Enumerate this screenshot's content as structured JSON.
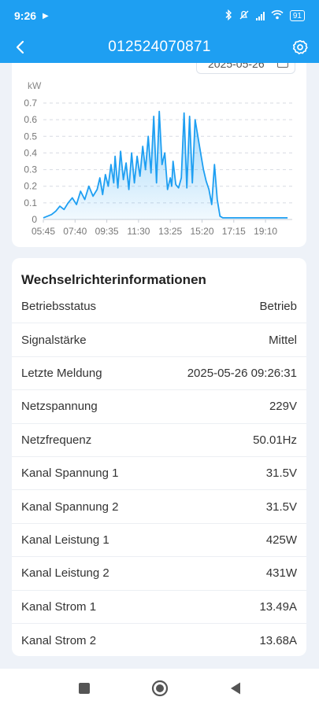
{
  "status_bar": {
    "time": "9:26",
    "battery": "91"
  },
  "header": {
    "title": "012524070871"
  },
  "date_picker": {
    "value": "2025-05-26"
  },
  "chart_data": {
    "type": "area",
    "ylabel": "kW",
    "ylim": [
      0,
      0.7
    ],
    "yticks": [
      "0",
      "0.1",
      "0.2",
      "0.3",
      "0.4",
      "0.5",
      "0.6",
      "0.7"
    ],
    "xticks": [
      "05:45",
      "07:40",
      "09:35",
      "11:30",
      "13:25",
      "15:20",
      "17:15",
      "19:10"
    ],
    "grid": true,
    "series": [
      {
        "x": [
          "05:45",
          "06:00",
          "06:15",
          "06:30",
          "06:45",
          "07:00",
          "07:15",
          "07:30",
          "07:45",
          "08:00",
          "08:15",
          "08:30",
          "08:45",
          "09:00",
          "09:10",
          "09:20",
          "09:30",
          "09:40",
          "09:50",
          "10:00",
          "10:05",
          "10:15",
          "10:25",
          "10:35",
          "10:45",
          "10:55",
          "11:05",
          "11:15",
          "11:25",
          "11:35",
          "11:45",
          "11:55",
          "12:05",
          "12:15",
          "12:25",
          "12:35",
          "12:45",
          "12:55",
          "13:05",
          "13:15",
          "13:25",
          "13:30",
          "13:35",
          "13:45",
          "13:55",
          "14:05",
          "14:15",
          "14:25",
          "14:35",
          "14:45",
          "14:55",
          "15:05",
          "15:15",
          "15:25",
          "15:35",
          "15:45",
          "15:55",
          "16:05",
          "16:15",
          "16:25",
          "16:35",
          "16:45",
          "16:55",
          "17:05",
          "17:15",
          "17:25",
          "17:35",
          "17:45",
          "18:00",
          "18:15",
          "18:30",
          "18:45",
          "19:00",
          "19:15",
          "19:30",
          "19:45",
          "20:00",
          "20:15",
          "20:30"
        ],
        "y": [
          0.01,
          0.02,
          0.03,
          0.05,
          0.08,
          0.06,
          0.1,
          0.13,
          0.09,
          0.17,
          0.12,
          0.2,
          0.14,
          0.18,
          0.25,
          0.15,
          0.27,
          0.2,
          0.33,
          0.22,
          0.38,
          0.19,
          0.41,
          0.24,
          0.34,
          0.18,
          0.4,
          0.22,
          0.38,
          0.26,
          0.44,
          0.3,
          0.5,
          0.28,
          0.62,
          0.22,
          0.65,
          0.33,
          0.4,
          0.18,
          0.25,
          0.2,
          0.35,
          0.21,
          0.19,
          0.25,
          0.64,
          0.19,
          0.62,
          0.22,
          0.6,
          0.5,
          0.4,
          0.3,
          0.23,
          0.18,
          0.09,
          0.33,
          0.12,
          0.02,
          0.01,
          0.01,
          0.01,
          0.01,
          0.01,
          0.01,
          0.01,
          0.01,
          0.01,
          0.01,
          0.01,
          0.01,
          0.01,
          0.01,
          0.01,
          0.01,
          0.01,
          0.01,
          0.01
        ]
      }
    ],
    "color": "#1e9ff2"
  },
  "info": {
    "title": "Wechselrichterinformationen",
    "rows": [
      {
        "label": "Betriebsstatus",
        "value": "Betrieb"
      },
      {
        "label": "Signalstärke",
        "value": "Mittel"
      },
      {
        "label": "Letzte Meldung",
        "value": "2025-05-26 09:26:31"
      },
      {
        "label": "Netzspannung",
        "value": "229V"
      },
      {
        "label": "Netzfrequenz",
        "value": "50.01Hz"
      },
      {
        "label": "Kanal Spannung 1",
        "value": "31.5V"
      },
      {
        "label": "Kanal Spannung 2",
        "value": "31.5V"
      },
      {
        "label": "Kanal Leistung 1",
        "value": "425W"
      },
      {
        "label": "Kanal Leistung 2",
        "value": "431W"
      },
      {
        "label": "Kanal Strom 1",
        "value": "13.49A"
      },
      {
        "label": "Kanal Strom 2",
        "value": "13.68A"
      }
    ]
  }
}
